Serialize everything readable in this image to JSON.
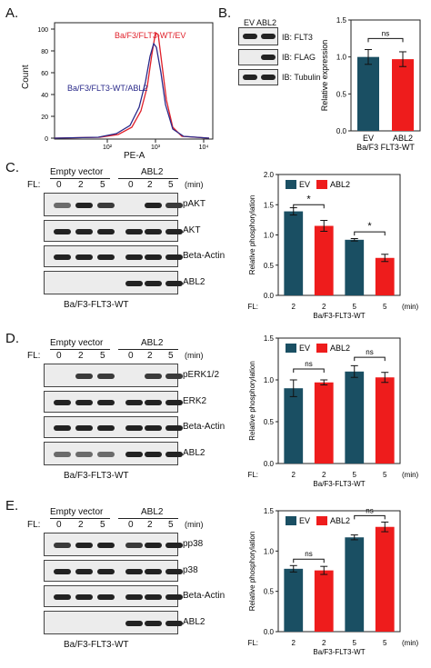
{
  "panels": {
    "a": "A.",
    "b": "B.",
    "c": "C.",
    "d": "D.",
    "e": "E."
  },
  "colors": {
    "ev": "#1a4f63",
    "abl2": "#ee1c1c",
    "flow_ev": "#e0202a",
    "flow_abl2": "#2a2a8a"
  },
  "panel_a": {
    "ylabel": "Count",
    "xlabel": "PE-A",
    "legend_ev": "Ba/F3/FLT3-WT/EV",
    "legend_abl2": "Ba/F3/FLT3-WT/ABL2",
    "y_ticks": [
      "0",
      "20",
      "40",
      "60",
      "80",
      "100"
    ],
    "x_ticks": [
      "10²",
      "10³",
      "10⁴"
    ]
  },
  "panel_b": {
    "lanes": "EV ABL2",
    "blots": [
      "IB: FLT3",
      "IB: FLAG",
      "IB: Tubulin"
    ],
    "chart_data": {
      "type": "bar",
      "categories": [
        "EV",
        "ABL2"
      ],
      "values": [
        1.0,
        0.97
      ],
      "errors": [
        0.1,
        0.1
      ],
      "ylabel": "Relative expression",
      "ylim": [
        0,
        1.5
      ],
      "yticks": [
        "0.0",
        "0.5",
        "1.0",
        "1.5"
      ],
      "sig": "ns",
      "xlabel": "Ba/F3 FLT3-WT"
    }
  },
  "blot_header": {
    "fl": "FL:",
    "empty": "Empty vector",
    "abl2": "ABL2",
    "conc": [
      "0",
      "2",
      "5",
      "0",
      "2",
      "5"
    ],
    "unit": "(min)"
  },
  "panel_c": {
    "blots": [
      "pAKT",
      "AKT",
      "Beta-Actin",
      "ABL2"
    ],
    "caption": "Ba/F3-FLT3-WT",
    "chart_data": {
      "type": "bar",
      "legend": [
        "EV",
        "ABL2"
      ],
      "categories": [
        "2",
        "2",
        "5",
        "5"
      ],
      "values": [
        1.39,
        1.15,
        0.92,
        0.62
      ],
      "errors": [
        0.06,
        0.09,
        0.02,
        0.06
      ],
      "ylabel": "Relative phosphorylation",
      "ylim": [
        0,
        2.0
      ],
      "yticks": [
        "0.0",
        "0.5",
        "1.0",
        "1.5",
        "2.0"
      ],
      "sig": [
        "*",
        "*"
      ],
      "fl": "FL:",
      "unit": "(min)",
      "xlabel": "Ba/F3-FLT3-WT"
    }
  },
  "panel_d": {
    "blots": [
      "pERK1/2",
      "ERK2",
      "Beta-Actin",
      "ABL2"
    ],
    "caption": "Ba/F3-FLT3-WT",
    "chart_data": {
      "type": "bar",
      "legend": [
        "EV",
        "ABL2"
      ],
      "categories": [
        "2",
        "2",
        "5",
        "5"
      ],
      "values": [
        0.9,
        0.97,
        1.1,
        1.03
      ],
      "errors": [
        0.1,
        0.03,
        0.07,
        0.06
      ],
      "ylabel": "Relative phosphorylation",
      "ylim": [
        0,
        1.5
      ],
      "yticks": [
        "0.0",
        "0.5",
        "1.0",
        "1.5"
      ],
      "sig": [
        "ns",
        "ns"
      ],
      "fl": "FL:",
      "unit": "(min)",
      "xlabel": "Ba/F3-FLT3-WT"
    }
  },
  "panel_e": {
    "blots": [
      "pp38",
      "p38",
      "Beta-Actin",
      "ABL2"
    ],
    "caption": "Ba/F3-FLT3-WT",
    "chart_data": {
      "type": "bar",
      "legend": [
        "EV",
        "ABL2"
      ],
      "categories": [
        "2",
        "2",
        "5",
        "5"
      ],
      "values": [
        0.78,
        0.76,
        1.17,
        1.3
      ],
      "errors": [
        0.04,
        0.05,
        0.03,
        0.06
      ],
      "ylabel": "Relative phosphorylation",
      "ylim": [
        0,
        1.5
      ],
      "yticks": [
        "0.0",
        "0.5",
        "1.0",
        "1.5"
      ],
      "sig": [
        "ns",
        "ns"
      ],
      "fl": "FL:",
      "unit": "(min)",
      "xlabel": "Ba/F3-FLT3-WT"
    }
  }
}
